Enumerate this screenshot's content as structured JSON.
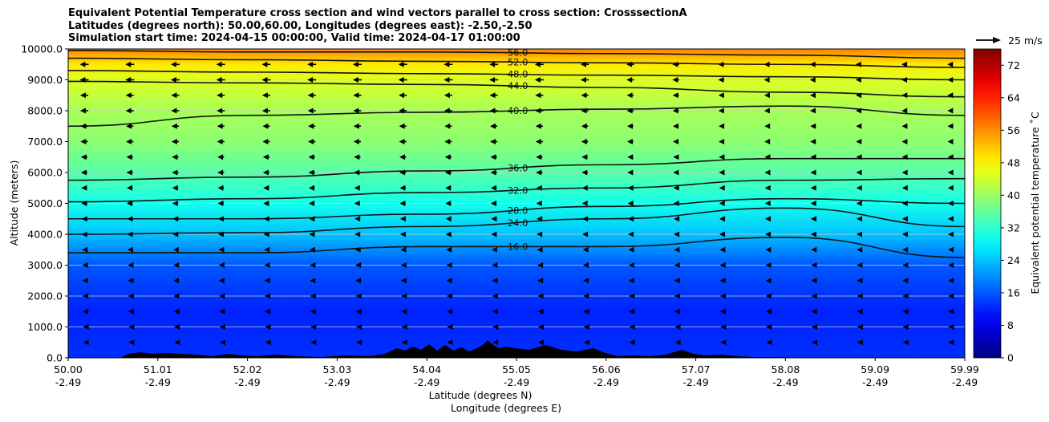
{
  "figure": {
    "title_lines": [
      "Equivalent Potential Temperature cross section and wind vectors parallel to cross section: CrosssectionA",
      "Latitudes (degrees north): 50.00,60.00, Longitudes (degrees east): -2.50,-2.50",
      "Simulation start time: 2024-04-15 00:00:00, Valid time: 2024-04-17 01:00:00"
    ],
    "wind_key_label": "25 m/s"
  },
  "chart_data": {
    "type": "heatmap",
    "ylabel": "Altitude (meters)",
    "xlabel_lines": [
      "Latitude (degrees N)",
      "Longitude (degrees E)"
    ],
    "ylim": [
      0,
      10000
    ],
    "y_ticks": [
      "0.0",
      "1000.0",
      "2000.0",
      "3000.0",
      "4000.0",
      "5000.0",
      "6000.0",
      "7000.0",
      "8000.0",
      "9000.0",
      "10000.0"
    ],
    "x_ticks": [
      {
        "lat": "50.00",
        "lon": "-2.49"
      },
      {
        "lat": "51.01",
        "lon": "-2.49"
      },
      {
        "lat": "52.02",
        "lon": "-2.49"
      },
      {
        "lat": "53.03",
        "lon": "-2.49"
      },
      {
        "lat": "54.04",
        "lon": "-2.49"
      },
      {
        "lat": "55.05",
        "lon": "-2.49"
      },
      {
        "lat": "56.06",
        "lon": "-2.49"
      },
      {
        "lat": "57.07",
        "lon": "-2.49"
      },
      {
        "lat": "58.08",
        "lon": "-2.49"
      },
      {
        "lat": "59.09",
        "lon": "-2.49"
      },
      {
        "lat": "59.99",
        "lon": "-2.49"
      }
    ],
    "grid": "horizontal",
    "colorbar": {
      "label": "Equivalent potential temperature ˚C",
      "range": [
        0,
        76
      ],
      "ticks": [
        "0",
        "8",
        "16",
        "24",
        "32",
        "40",
        "48",
        "56",
        "64",
        "72"
      ],
      "colormap": "jet"
    },
    "contours": [
      {
        "value": 16,
        "label": "16.0",
        "alt": [
          3400,
          3400,
          3600,
          3600,
          3900,
          3250
        ]
      },
      {
        "value": 24,
        "label": "24.0",
        "alt": [
          4000,
          4050,
          4250,
          4500,
          4850,
          4250
        ]
      },
      {
        "value": 28,
        "label": "28.0",
        "alt": [
          4500,
          4500,
          4650,
          4900,
          5150,
          5000
        ]
      },
      {
        "value": 32,
        "label": "32.0",
        "alt": [
          5050,
          5150,
          5350,
          5500,
          5750,
          5800
        ]
      },
      {
        "value": 36,
        "label": "36.0",
        "alt": [
          5750,
          5850,
          6050,
          6250,
          6450,
          6450
        ]
      },
      {
        "value": 40,
        "label": "40.0",
        "alt": [
          7500,
          7850,
          7950,
          8050,
          8150,
          7850
        ]
      },
      {
        "value": 44,
        "label": "44.0",
        "alt": [
          8950,
          8900,
          8850,
          8750,
          8600,
          8450
        ]
      },
      {
        "value": 48,
        "label": "48.0",
        "alt": [
          9300,
          9250,
          9200,
          9150,
          9100,
          9000
        ]
      },
      {
        "value": 52,
        "label": "52.0",
        "alt": [
          9700,
          9650,
          9600,
          9550,
          9500,
          9400
        ]
      },
      {
        "value": 56,
        "label": "56.0",
        "alt": [
          9950,
          9900,
          9900,
          9850,
          9800,
          9700
        ]
      }
    ],
    "wind_levels": [
      {
        "alt": 9500,
        "u": -12
      },
      {
        "alt": 9000,
        "u": -12
      },
      {
        "alt": 8500,
        "u": -11
      },
      {
        "alt": 8000,
        "u": -11
      },
      {
        "alt": 7500,
        "u": -10
      },
      {
        "alt": 7000,
        "u": -10
      },
      {
        "alt": 6500,
        "u": -9
      },
      {
        "alt": 6000,
        "u": -9
      },
      {
        "alt": 5500,
        "u": -8
      },
      {
        "alt": 5000,
        "u": -8
      },
      {
        "alt": 4500,
        "u": -7
      },
      {
        "alt": 4000,
        "u": -7
      },
      {
        "alt": 3500,
        "u": -6
      },
      {
        "alt": 3000,
        "u": -5
      },
      {
        "alt": 2500,
        "u": -5
      },
      {
        "alt": 2000,
        "u": -4
      },
      {
        "alt": 1500,
        "u": -4
      },
      {
        "alt": 1000,
        "u": -3
      },
      {
        "alt": 500,
        "u": -3
      }
    ],
    "field_stops": [
      {
        "alt": 0,
        "value": 13
      },
      {
        "alt": 1500,
        "value": 12
      },
      {
        "alt": 3000,
        "value": 16
      },
      {
        "alt": 4000,
        "value": 24
      },
      {
        "alt": 5000,
        "value": 30
      },
      {
        "alt": 6000,
        "value": 35
      },
      {
        "alt": 7000,
        "value": 39
      },
      {
        "alt": 8000,
        "value": 41
      },
      {
        "alt": 9000,
        "value": 45
      },
      {
        "alt": 9500,
        "value": 49
      },
      {
        "alt": 10000,
        "value": 57
      }
    ],
    "colors": {
      "grid": "#cccccc",
      "contour": "#111111",
      "terrain": "#000000",
      "arrow": "#000000"
    }
  }
}
